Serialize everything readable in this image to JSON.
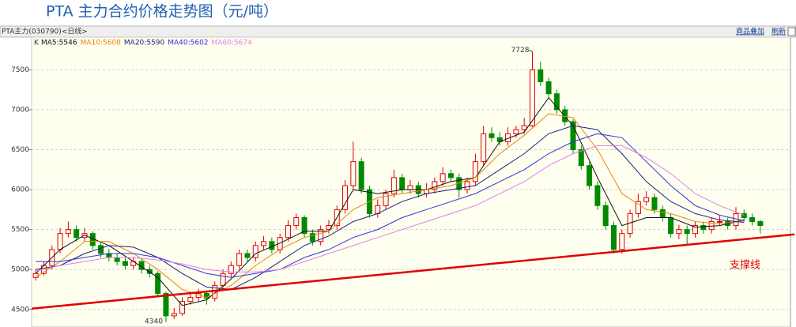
{
  "chart_data": {
    "type": "candlestick",
    "title": "PTA 主力合约价格走势图（元/吨）",
    "instrument": "PTA主力(030790)<日线>",
    "buttons": [
      "商品叠加",
      "刷新"
    ],
    "legend_label": "K",
    "background": "#fffff0",
    "up_color": "#e00000",
    "down_color": "#008a00",
    "grid": true,
    "xlim": [
      -0.5,
      92.7
    ],
    "ylim": [
      4300,
      7800
    ],
    "yticks": [
      4500,
      5000,
      5500,
      6000,
      6500,
      7000,
      7500
    ],
    "open": [
      4900,
      4950,
      5050,
      5250,
      5450,
      5500,
      5400,
      5450,
      5300,
      5200,
      5150,
      5100,
      5050,
      5100,
      5000,
      4950,
      4700,
      4420,
      4450,
      4600,
      4650,
      4700,
      4640,
      4800,
      4950,
      5050,
      5200,
      5150,
      5300,
      5350,
      5250,
      5400,
      5550,
      5650,
      5450,
      5350,
      5500,
      5550,
      5750,
      6050,
      6350,
      6000,
      5700,
      5800,
      5950,
      6150,
      6000,
      6050,
      5950,
      6000,
      6100,
      6200,
      6150,
      6000,
      6100,
      6350,
      6700,
      6650,
      6600,
      6700,
      6750,
      6800,
      7500,
      7350,
      7200,
      7000,
      6850,
      6500,
      6300,
      6050,
      5800,
      5550,
      5250,
      5450,
      5700,
      5850,
      5900,
      5750,
      5650,
      5450,
      5500,
      5450,
      5550,
      5500,
      5600,
      5600,
      5550,
      5700,
      5650,
      5600
    ],
    "high": [
      5000,
      5100,
      5300,
      5520,
      5600,
      5550,
      5520,
      5480,
      5350,
      5260,
      5200,
      5150,
      5160,
      5130,
      5050,
      4980,
      4720,
      4520,
      4650,
      4720,
      4760,
      4740,
      4850,
      5000,
      5100,
      5250,
      5250,
      5350,
      5420,
      5400,
      5450,
      5620,
      5700,
      5680,
      5500,
      5550,
      5620,
      5800,
      6120,
      6600,
      6400,
      6050,
      5880,
      6000,
      6250,
      6200,
      6120,
      6100,
      6080,
      6150,
      6280,
      6250,
      6200,
      6150,
      6450,
      6800,
      6780,
      6720,
      6780,
      6800,
      6900,
      7728,
      7600,
      7400,
      7250,
      7050,
      6880,
      6550,
      6350,
      6100,
      5850,
      5600,
      5500,
      5750,
      5950,
      5980,
      5950,
      5800,
      5700,
      5560,
      5550,
      5600,
      5600,
      5650,
      5680,
      5650,
      5780,
      5750,
      5700,
      5620
    ],
    "low": [
      4860,
      4920,
      5000,
      5200,
      5400,
      5350,
      5350,
      5250,
      5150,
      5100,
      5050,
      5000,
      5000,
      4950,
      4900,
      4650,
      4340,
      4380,
      4420,
      4560,
      4600,
      4560,
      4600,
      4760,
      4900,
      5000,
      5100,
      5100,
      5250,
      5200,
      5200,
      5350,
      5500,
      5400,
      5300,
      5300,
      5450,
      5500,
      5700,
      6000,
      5950,
      5650,
      5650,
      5750,
      5900,
      5950,
      5950,
      5900,
      5900,
      5950,
      6050,
      6100,
      5900,
      5950,
      6050,
      6300,
      6600,
      6550,
      6550,
      6650,
      6700,
      6780,
      7300,
      7150,
      6950,
      6800,
      6450,
      6250,
      6000,
      5750,
      5500,
      5200,
      5200,
      5400,
      5650,
      5800,
      5700,
      5600,
      5400,
      5380,
      5320,
      5400,
      5450,
      5450,
      5550,
      5500,
      5500,
      5600,
      5550,
      5450
    ],
    "close": [
      4950,
      5050,
      5250,
      5450,
      5500,
      5400,
      5450,
      5300,
      5200,
      5150,
      5100,
      5050,
      5100,
      5000,
      4950,
      4700,
      4420,
      4450,
      4600,
      4650,
      4700,
      4640,
      4800,
      4950,
      5050,
      5200,
      5150,
      5300,
      5350,
      5250,
      5400,
      5550,
      5650,
      5450,
      5350,
      5500,
      5550,
      5750,
      6050,
      6350,
      6000,
      5700,
      5800,
      5950,
      6150,
      6000,
      6050,
      5950,
      6000,
      6100,
      6200,
      6150,
      6000,
      6100,
      6350,
      6700,
      6650,
      6600,
      6700,
      6750,
      6800,
      7500,
      7350,
      7200,
      7000,
      6850,
      6500,
      6300,
      6050,
      5800,
      5550,
      5250,
      5450,
      5700,
      5850,
      5900,
      5750,
      5650,
      5450,
      5500,
      5450,
      5550,
      5500,
      5600,
      5600,
      5550,
      5700,
      5650,
      5600,
      5550
    ],
    "series": [
      {
        "name": "MA5:5546",
        "color": "#111111",
        "x": [
          0,
          3,
          6,
          9,
          12,
          15,
          18,
          21,
          24,
          27,
          30,
          33,
          36,
          39,
          42,
          45,
          48,
          51,
          54,
          57,
          60,
          63,
          66,
          69,
          72,
          75,
          78,
          81,
          84,
          87
        ],
        "values": [
          4950,
          5250,
          5430,
          5300,
          5100,
          4900,
          4550,
          4620,
          4880,
          5200,
          5330,
          5480,
          5480,
          6000,
          5950,
          6000,
          6000,
          6100,
          6150,
          6600,
          6720,
          7150,
          6800,
          6150,
          5550,
          5650,
          5650,
          5530,
          5550,
          5620
        ]
      },
      {
        "name": "MA10:5608",
        "color": "#e8860c",
        "x": [
          0,
          3,
          6,
          9,
          12,
          15,
          18,
          21,
          24,
          27,
          30,
          33,
          36,
          39,
          42,
          45,
          48,
          51,
          54,
          57,
          60,
          63,
          66,
          69,
          72,
          75,
          78,
          81,
          84,
          87
        ],
        "values": [
          4900,
          5100,
          5350,
          5350,
          5200,
          5000,
          4750,
          4650,
          4800,
          5050,
          5250,
          5400,
          5480,
          5750,
          5900,
          5950,
          6000,
          6050,
          6150,
          6450,
          6680,
          6950,
          6900,
          6500,
          5950,
          5750,
          5700,
          5600,
          5570,
          5610
        ]
      },
      {
        "name": "MA20:5590",
        "color": "#1a237e",
        "x": [
          0,
          3,
          6,
          9,
          12,
          15,
          18,
          21,
          24,
          27,
          30,
          33,
          36,
          39,
          42,
          45,
          48,
          51,
          54,
          57,
          60,
          63,
          66,
          69,
          72,
          75,
          78,
          81,
          84,
          87
        ],
        "values": [
          5000,
          5050,
          5200,
          5300,
          5280,
          5150,
          4950,
          4780,
          4750,
          4900,
          5100,
          5300,
          5420,
          5600,
          5700,
          5850,
          5950,
          6000,
          6050,
          6250,
          6450,
          6700,
          6800,
          6750,
          6450,
          6100,
          5850,
          5700,
          5620,
          5590
        ]
      },
      {
        "name": "MA40:5602",
        "color": "#3030e0",
        "x": [
          0,
          3,
          6,
          9,
          12,
          15,
          18,
          21,
          24,
          27,
          30,
          33,
          36,
          39,
          42,
          45,
          48,
          51,
          54,
          57,
          60,
          63,
          66,
          69,
          72,
          75,
          78,
          81,
          84,
          87
        ],
        "values": [
          5100,
          5100,
          5150,
          5200,
          5200,
          5150,
          5050,
          4950,
          4900,
          4950,
          5000,
          5150,
          5250,
          5400,
          5500,
          5650,
          5750,
          5850,
          5950,
          6100,
          6250,
          6450,
          6600,
          6700,
          6650,
          6350,
          6050,
          5800,
          5680,
          5610
        ]
      },
      {
        "name": "MA60:5674",
        "color": "#e080e8",
        "x": [
          0,
          3,
          6,
          9,
          12,
          15,
          18,
          21,
          24,
          27,
          30,
          33,
          36,
          39,
          42,
          45,
          48,
          51,
          54,
          57,
          60,
          63,
          66,
          69,
          72,
          75,
          78,
          81,
          84,
          87
        ],
        "values": [
          4980,
          5050,
          5100,
          5150,
          5150,
          5120,
          5070,
          5000,
          4970,
          4970,
          5000,
          5100,
          5200,
          5300,
          5400,
          5500,
          5600,
          5700,
          5800,
          5950,
          6100,
          6300,
          6450,
          6550,
          6550,
          6400,
          6200,
          5950,
          5800,
          5680
        ]
      }
    ],
    "trendline": {
      "label": "支撑线",
      "color": "#e00000",
      "x": [
        -0.5,
        93.2
      ],
      "values": [
        4510,
        5440
      ]
    }
  }
}
